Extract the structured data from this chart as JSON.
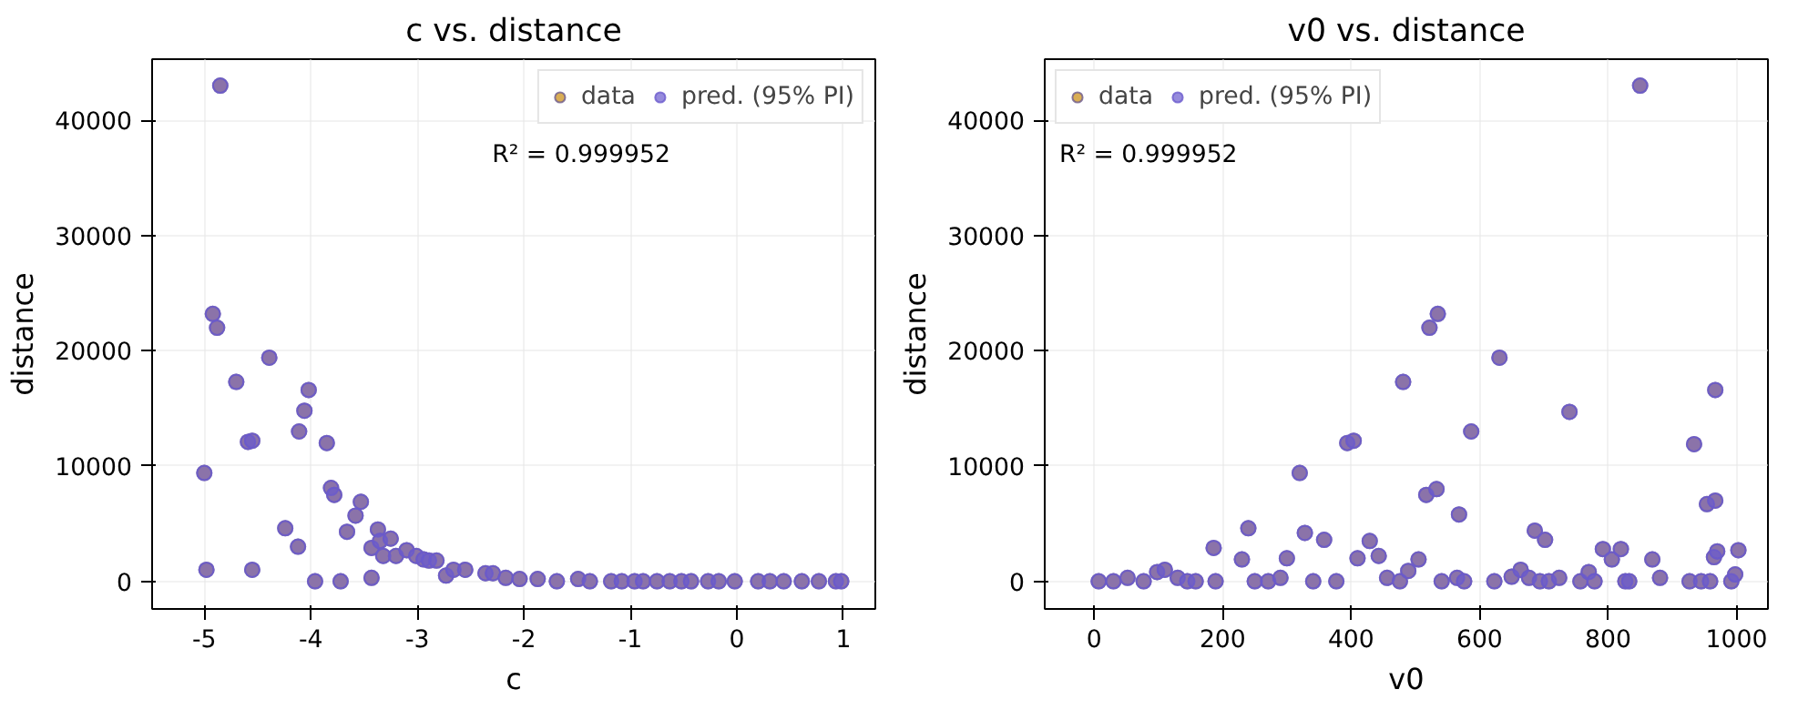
{
  "chart_data": [
    {
      "type": "scatter",
      "title": "c vs. distance",
      "xlabel": "c",
      "ylabel": "distance",
      "annotations": [
        "R² = 0.999952"
      ],
      "x": [
        -5.0,
        -4.98,
        -4.92,
        -4.88,
        -4.85,
        -4.7,
        -4.59,
        -4.55,
        -4.55,
        -4.39,
        -4.24,
        -4.12,
        -4.11,
        -4.06,
        -4.02,
        -3.96,
        -3.85,
        -3.81,
        -3.78,
        -3.72,
        -3.66,
        -3.58,
        -3.53,
        -3.43,
        -3.43,
        -3.37,
        -3.35,
        -3.32,
        -3.25,
        -3.2,
        -3.1,
        -3.01,
        -2.94,
        -2.89,
        -2.82,
        -2.73,
        -2.66,
        -2.55,
        -2.36,
        -2.29,
        -2.17,
        -2.04,
        -1.87,
        -1.69,
        -1.49,
        -1.38,
        -1.18,
        -1.08,
        -0.96,
        -0.88,
        -0.75,
        -0.63,
        -0.52,
        -0.43,
        -0.27,
        -0.17,
        -0.02,
        0.2,
        0.31,
        0.44,
        0.61,
        0.77,
        0.93,
        0.98
      ],
      "series": [
        {
          "name": "data",
          "color": "#d9ad55",
          "values": [
            9400,
            1000,
            23200,
            22000,
            43000,
            17300,
            12100,
            12200,
            1000,
            19400,
            4600,
            3000,
            13000,
            14800,
            16600,
            0,
            12000,
            8100,
            7500,
            0,
            4300,
            5700,
            6900,
            2900,
            300,
            4500,
            3500,
            2200,
            3700,
            2200,
            2700,
            2200,
            1900,
            1800,
            1800,
            500,
            1000,
            1000,
            700,
            700,
            300,
            200,
            200,
            0,
            200,
            0,
            0,
            0,
            0,
            0,
            0,
            0,
            0,
            0,
            0,
            0,
            0,
            0,
            0,
            0,
            0,
            0,
            0,
            0
          ]
        },
        {
          "name": "pred. (95% PI)",
          "color": "#6a5acd",
          "values": [
            9400,
            1000,
            23200,
            22000,
            43000,
            17300,
            12100,
            12200,
            1000,
            19400,
            4600,
            3000,
            13000,
            14800,
            16600,
            0,
            12000,
            8100,
            7500,
            0,
            4300,
            5700,
            6900,
            2900,
            300,
            4500,
            3500,
            2200,
            3700,
            2200,
            2700,
            2200,
            1900,
            1800,
            1800,
            500,
            1000,
            1000,
            700,
            700,
            300,
            200,
            200,
            0,
            200,
            0,
            0,
            0,
            0,
            0,
            0,
            0,
            0,
            0,
            0,
            0,
            0,
            0,
            0,
            0,
            0,
            0,
            0,
            0
          ]
        }
      ],
      "xlim": [
        -5.49,
        1.3
      ],
      "xticks": [
        -5,
        -4,
        -3,
        -2,
        -1,
        0,
        1
      ],
      "ylim": [
        -2400,
        45300
      ],
      "yticks": [
        0,
        10000,
        20000,
        30000,
        40000
      ],
      "grid": true,
      "legend": "top right",
      "marker": "circle"
    },
    {
      "type": "scatter",
      "title": "v0 vs. distance",
      "xlabel": "v0",
      "ylabel": "distance",
      "annotations": [
        "R² = 0.999952"
      ],
      "x": [
        7,
        30,
        52,
        77,
        98,
        110,
        130,
        145,
        158,
        186,
        189,
        230,
        240,
        250,
        271,
        290,
        300,
        320,
        328,
        341,
        358,
        377,
        394,
        404,
        410,
        429,
        443,
        456,
        481,
        476,
        489,
        505,
        517,
        522,
        533,
        535,
        541,
        565,
        568,
        576,
        587,
        623,
        631,
        650,
        664,
        677,
        686,
        694,
        702,
        708,
        724,
        740,
        757,
        770,
        779,
        792,
        806,
        820,
        827,
        833,
        850,
        869,
        881,
        927,
        934,
        945,
        954,
        959,
        965,
        967,
        967,
        970,
        992,
        998,
        1003
      ],
      "series": [
        {
          "name": "data",
          "color": "#d9ad55",
          "values": [
            0,
            0,
            300,
            0,
            800,
            1000,
            300,
            0,
            0,
            2900,
            0,
            1900,
            4600,
            0,
            0,
            300,
            2000,
            9400,
            4200,
            0,
            3600,
            0,
            12000,
            12200,
            2000,
            3500,
            2200,
            300,
            17300,
            0,
            900,
            1900,
            7500,
            22000,
            8000,
            23200,
            0,
            300,
            5800,
            0,
            13000,
            0,
            19400,
            400,
            1000,
            300,
            4400,
            0,
            3600,
            0,
            300,
            14700,
            0,
            800,
            0,
            2800,
            1900,
            2800,
            0,
            0,
            43000,
            1900,
            300,
            0,
            11900,
            0,
            6700,
            0,
            2100,
            7000,
            16600,
            2600,
            0,
            600,
            2700
          ]
        },
        {
          "name": "pred. (95% PI)",
          "color": "#6a5acd",
          "values": [
            0,
            0,
            300,
            0,
            800,
            1000,
            300,
            0,
            0,
            2900,
            0,
            1900,
            4600,
            0,
            0,
            300,
            2000,
            9400,
            4200,
            0,
            3600,
            0,
            12000,
            12200,
            2000,
            3500,
            2200,
            300,
            17300,
            0,
            900,
            1900,
            7500,
            22000,
            8000,
            23200,
            0,
            300,
            5800,
            0,
            13000,
            0,
            19400,
            400,
            1000,
            300,
            4400,
            0,
            3600,
            0,
            300,
            14700,
            0,
            800,
            0,
            2800,
            1900,
            2800,
            0,
            0,
            43000,
            1900,
            300,
            0,
            11900,
            0,
            6700,
            0,
            2100,
            7000,
            16600,
            2600,
            0,
            600,
            2700
          ]
        }
      ],
      "xlim": [
        -77,
        1049
      ],
      "xticks": [
        0,
        200,
        400,
        600,
        800,
        1000
      ],
      "ylim": [
        -2400,
        45300
      ],
      "yticks": [
        0,
        10000,
        20000,
        30000,
        40000
      ],
      "grid": true,
      "legend": "top left",
      "marker": "circle"
    }
  ]
}
